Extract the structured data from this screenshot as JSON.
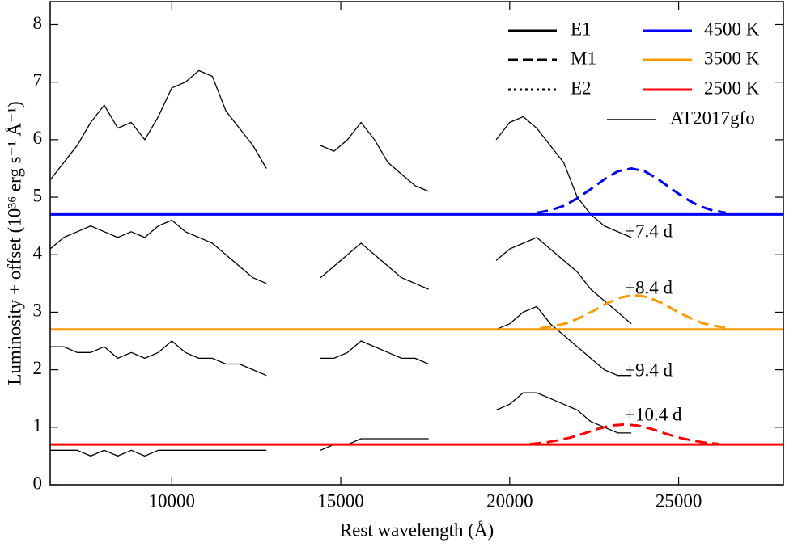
{
  "chart_data": {
    "type": "line",
    "x_label": "Rest wavelength (Å)",
    "y_label": "Luminosity + offset (10³⁶ erg s⁻¹ Å⁻¹)",
    "xlim": [
      6400,
      28100
    ],
    "ylim": [
      0,
      8.4
    ],
    "xticks": [
      10000,
      15000,
      20000,
      25000
    ],
    "yticks": [
      0,
      1,
      2,
      3,
      4,
      5,
      6,
      7,
      8
    ],
    "legend_position": "upper right",
    "legend": [
      {
        "name": "E1",
        "color": "#000000",
        "dash": "solid"
      },
      {
        "name": "M1",
        "color": "#000000",
        "dash": "dashed"
      },
      {
        "name": "E2",
        "color": "#000000",
        "dash": "dotted"
      },
      {
        "name": "4500 K",
        "color": "#0000ff",
        "dash": "solid"
      },
      {
        "name": "3500 K",
        "color": "#ff9900",
        "dash": "solid"
      },
      {
        "name": "2500 K",
        "color": "#ff0000",
        "dash": "solid"
      },
      {
        "name": "AT2017gfo",
        "color": "#000000",
        "dash": "thin"
      }
    ],
    "x": [
      6400,
      6800,
      7200,
      7600,
      8000,
      8400,
      8800,
      9200,
      9600,
      10000,
      10400,
      10800,
      11200,
      11600,
      12000,
      12400,
      12800,
      13200,
      13600,
      14000,
      14400,
      14800,
      15200,
      15600,
      16000,
      16400,
      16800,
      17200,
      17600,
      18000,
      18400,
      18800,
      19200,
      19600,
      20000,
      20400,
      20800,
      21200,
      21600,
      22000,
      22400,
      22800,
      23200,
      23600
    ],
    "spectra": [
      {
        "label": "+7.4 d",
        "color": "#000000",
        "values": [
          5.3,
          5.6,
          5.9,
          6.3,
          6.6,
          6.2,
          6.3,
          6.0,
          6.4,
          6.9,
          7.0,
          7.2,
          7.1,
          6.5,
          6.2,
          5.9,
          5.5,
          null,
          null,
          null,
          5.9,
          5.8,
          6.0,
          6.3,
          6.0,
          5.6,
          5.4,
          5.2,
          5.1,
          null,
          null,
          null,
          null,
          6.0,
          6.3,
          6.4,
          6.2,
          5.9,
          5.6,
          5.0,
          4.7,
          4.5,
          4.4,
          4.3
        ]
      },
      {
        "label": "+8.4 d",
        "color": "#000000",
        "values": [
          4.1,
          4.3,
          4.4,
          4.5,
          4.4,
          4.3,
          4.4,
          4.3,
          4.5,
          4.6,
          4.4,
          4.3,
          4.2,
          4.0,
          3.8,
          3.6,
          3.5,
          null,
          null,
          null,
          3.6,
          3.8,
          4.0,
          4.2,
          4.0,
          3.8,
          3.6,
          3.5,
          3.4,
          null,
          null,
          null,
          null,
          3.9,
          4.1,
          4.2,
          4.3,
          4.1,
          3.9,
          3.7,
          3.4,
          3.2,
          3.0,
          2.8
        ]
      },
      {
        "label": "+9.4 d",
        "color": "#000000",
        "values": [
          2.4,
          2.4,
          2.3,
          2.3,
          2.4,
          2.2,
          2.3,
          2.2,
          2.3,
          2.5,
          2.3,
          2.2,
          2.2,
          2.1,
          2.1,
          2.0,
          1.9,
          null,
          null,
          null,
          2.2,
          2.2,
          2.3,
          2.5,
          2.4,
          2.3,
          2.2,
          2.2,
          2.1,
          null,
          null,
          null,
          null,
          2.7,
          2.8,
          3.0,
          3.1,
          2.8,
          2.6,
          2.4,
          2.2,
          2.0,
          1.9,
          1.9
        ]
      },
      {
        "label": "+10.4 d",
        "color": "#000000",
        "values": [
          0.6,
          0.6,
          0.6,
          0.5,
          0.6,
          0.5,
          0.6,
          0.5,
          0.6,
          0.6,
          0.6,
          0.6,
          0.6,
          0.6,
          0.6,
          0.6,
          0.6,
          null,
          null,
          null,
          0.6,
          0.7,
          0.7,
          0.8,
          0.8,
          0.8,
          0.8,
          0.8,
          0.8,
          null,
          null,
          null,
          null,
          1.3,
          1.4,
          1.6,
          1.6,
          1.5,
          1.4,
          1.3,
          1.1,
          1.0,
          0.9,
          0.9
        ]
      }
    ],
    "models": [
      {
        "color": "#0000ff",
        "baseline": 4.7,
        "x": [
          20800,
          21200,
          21600,
          22000,
          22400,
          22800,
          23200,
          23600,
          24000,
          24400,
          24800,
          25200,
          25600,
          26000,
          26400
        ],
        "values": [
          4.73,
          4.77,
          4.85,
          4.98,
          5.14,
          5.31,
          5.45,
          5.5,
          5.45,
          5.31,
          5.14,
          4.98,
          4.85,
          4.77,
          4.73
        ]
      },
      {
        "color": "#ff9900",
        "baseline": 2.7,
        "x": [
          20900,
          21300,
          21700,
          22100,
          22500,
          22900,
          23300,
          23700,
          24100,
          24500,
          24900,
          25300,
          25700,
          26100,
          26500
        ],
        "values": [
          2.72,
          2.76,
          2.81,
          2.91,
          3.03,
          3.16,
          3.26,
          3.3,
          3.26,
          3.16,
          3.03,
          2.91,
          2.81,
          2.76,
          2.72
        ]
      },
      {
        "color": "#ff0000",
        "baseline": 0.7,
        "x": [
          20600,
          21000,
          21400,
          21800,
          22200,
          22600,
          23000,
          23400,
          23800,
          24200,
          24600,
          25000,
          25400,
          25800,
          26200
        ],
        "values": [
          0.71,
          0.73,
          0.77,
          0.82,
          0.89,
          0.97,
          1.03,
          1.05,
          1.03,
          0.97,
          0.89,
          0.82,
          0.77,
          0.73,
          0.71
        ]
      }
    ]
  }
}
